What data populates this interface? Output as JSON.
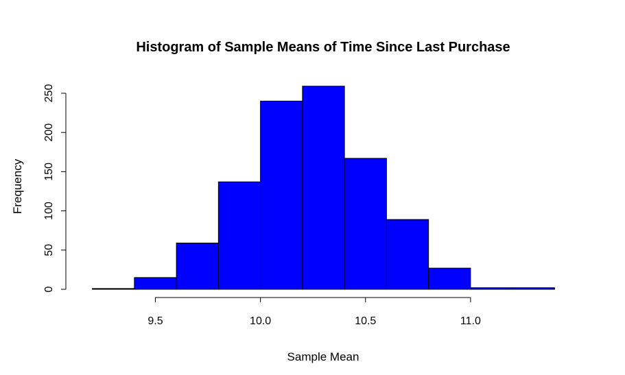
{
  "chart_data": {
    "type": "bar",
    "title": "Histogram of Sample Means of Time Since Last Purchase",
    "xlabel": "Sample Mean",
    "ylabel": "Frequency",
    "bar_color": "#0000FF",
    "bins": [
      {
        "start": 9.2,
        "end": 9.4,
        "count": 1
      },
      {
        "start": 9.4,
        "end": 9.6,
        "count": 15
      },
      {
        "start": 9.6,
        "end": 9.8,
        "count": 59
      },
      {
        "start": 9.8,
        "end": 10.0,
        "count": 137
      },
      {
        "start": 10.0,
        "end": 10.2,
        "count": 240
      },
      {
        "start": 10.2,
        "end": 10.4,
        "count": 259
      },
      {
        "start": 10.4,
        "end": 10.6,
        "count": 167
      },
      {
        "start": 10.6,
        "end": 10.8,
        "count": 89
      },
      {
        "start": 10.8,
        "end": 11.0,
        "count": 27
      },
      {
        "start": 11.0,
        "end": 11.2,
        "count": 2
      },
      {
        "start": 11.2,
        "end": 11.4,
        "count": 2
      }
    ],
    "x_ticks": [
      9.5,
      10.0,
      10.5,
      11.0
    ],
    "x_tick_labels": [
      "9.5",
      "10.0",
      "10.5",
      "11.0"
    ],
    "y_ticks": [
      0,
      50,
      100,
      150,
      200,
      250
    ],
    "y_tick_labels": [
      "0",
      "50",
      "100",
      "150",
      "200",
      "250"
    ],
    "xlim": [
      9.2,
      11.4
    ],
    "ylim": [
      0,
      250
    ],
    "grid": false
  }
}
